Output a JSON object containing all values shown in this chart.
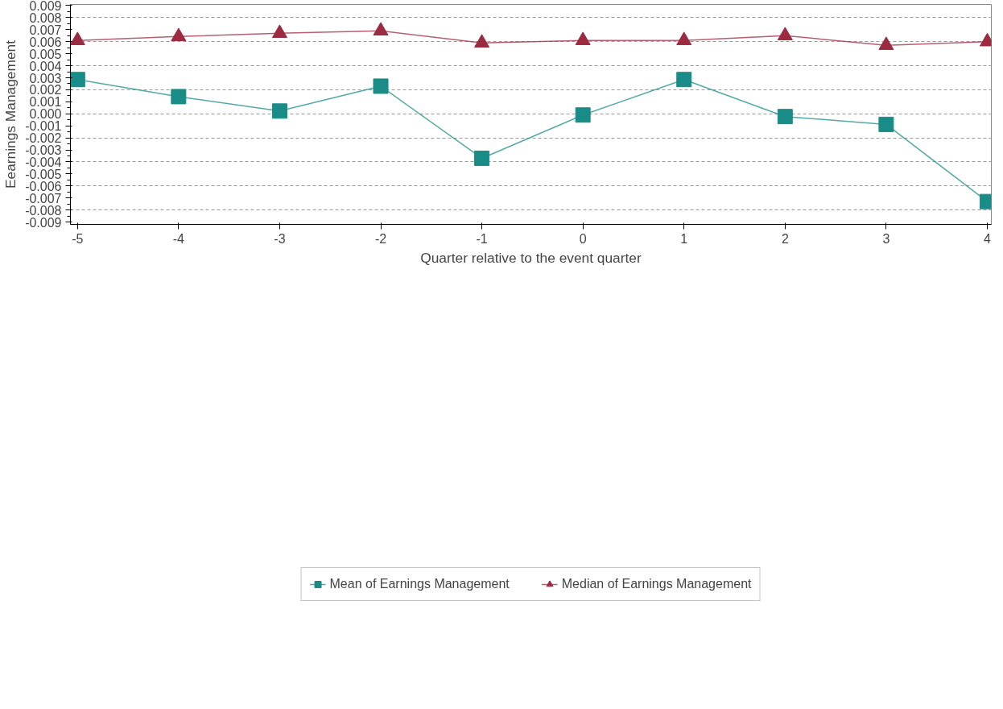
{
  "chart_data": {
    "type": "line",
    "xlabel": "Quarter relative to the event quarter",
    "ylabel": "Eearnings Management",
    "x": [
      -5,
      -4,
      -3,
      -2,
      -1,
      0,
      1,
      2,
      3,
      4
    ],
    "series": [
      {
        "name": "Mean of Earnings Management",
        "color": "#1a8c87",
        "marker": "square",
        "values": [
          0.00285,
          0.00143,
          0.00023,
          0.0023,
          -0.0037,
          -0.0001,
          0.00285,
          -0.00023,
          -0.00088,
          -0.0073
        ]
      },
      {
        "name": "Median of Earnings Management",
        "color": "#9c2a40",
        "marker": "triangle",
        "values": [
          0.0061,
          0.00643,
          0.0067,
          0.0069,
          0.0059,
          0.0061,
          0.0061,
          0.0065,
          0.0057,
          0.006
        ]
      }
    ],
    "xlim": [
      -5.07,
      4.04
    ],
    "ylim": [
      -0.0092,
      0.0091
    ],
    "xticks": [
      -5,
      -4,
      -3,
      -2,
      -1,
      0,
      1,
      2,
      3,
      4
    ],
    "yticks": [
      0.009,
      0.008,
      0.007,
      0.006,
      0.005,
      0.004,
      0.003,
      0.002,
      0.001,
      {
        "value": 0,
        "label": "0.000"
      },
      -0.001,
      -0.002,
      -0.003,
      -0.004,
      -0.005,
      -0.006,
      -0.007,
      -0.008,
      -0.009
    ],
    "grid": "y",
    "legend": "bottom",
    "line_style": "solid"
  }
}
